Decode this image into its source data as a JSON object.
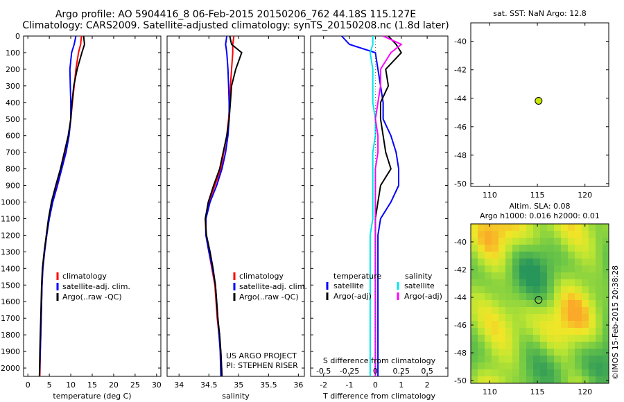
{
  "header": {
    "title_line1": "Argo profile: AO 5904416_8 06-Feb-2015 20150206_762 44.18S 115.127E",
    "title_line2": "Climatology: CARS2009. Satellite-adjusted climatology: synTS_20150208.nc (1.8d later)"
  },
  "colors": {
    "climatology": "#ff0000",
    "satellite": "#0000ff",
    "argo": "#000000",
    "sat_salinity": "#00e5ee",
    "argo_salinity_adj": "#ff00ff",
    "marker": "#c8e600"
  },
  "chart_data": [
    {
      "type": "line",
      "id": "temperature",
      "xlabel": "temperature (deg C)",
      "xlim": [
        -1,
        31
      ],
      "xticks": [
        0,
        5,
        10,
        15,
        20,
        25,
        30
      ],
      "ylim": [
        2050,
        0
      ],
      "yticks": [
        0,
        100,
        200,
        300,
        400,
        500,
        600,
        700,
        800,
        900,
        1000,
        1100,
        1200,
        1300,
        1400,
        1500,
        1600,
        1700,
        1800,
        1900,
        2000
      ],
      "legend": [
        "climatology",
        "satellite-adj. clim.",
        "Argo(..raw -QC)"
      ],
      "series": [
        {
          "name": "climatology",
          "x": [
            12.5,
            12.3,
            11.8,
            11.2,
            10.8,
            10.4,
            10.0,
            9.5,
            8.6,
            7.7,
            6.6,
            5.6,
            4.9,
            4.4,
            3.9,
            3.5,
            3.3,
            3.2,
            3.1,
            3.0,
            2.9,
            2.8
          ],
          "y": [
            0,
            50,
            100,
            200,
            300,
            400,
            500,
            600,
            700,
            800,
            900,
            1000,
            1100,
            1200,
            1300,
            1400,
            1500,
            1600,
            1700,
            1800,
            1900,
            2050
          ]
        },
        {
          "name": "satellite-adj. clim.",
          "x": [
            11.2,
            10.8,
            10.2,
            9.8,
            9.9,
            10.0,
            10.0,
            9.6,
            8.9,
            7.9,
            6.9,
            5.8,
            5.0,
            4.4,
            3.9,
            3.5,
            3.3,
            3.2,
            3.1,
            3.0,
            2.9,
            2.7
          ],
          "y": [
            0,
            50,
            100,
            200,
            300,
            400,
            500,
            600,
            700,
            800,
            900,
            1000,
            1100,
            1200,
            1300,
            1400,
            1500,
            1600,
            1700,
            1800,
            1900,
            2050
          ]
        },
        {
          "name": "Argo(..raw -QC)",
          "x": [
            13.0,
            13.2,
            12.6,
            11.5,
            10.7,
            10.3,
            10.0,
            9.4,
            8.5,
            7.6,
            6.5,
            5.5,
            4.8,
            4.3,
            3.8,
            3.4,
            3.2,
            3.1,
            3.0,
            2.9,
            2.8,
            2.7
          ],
          "y": [
            0,
            50,
            100,
            200,
            300,
            400,
            500,
            600,
            700,
            800,
            900,
            1000,
            1100,
            1200,
            1300,
            1400,
            1500,
            1600,
            1700,
            1800,
            1900,
            2050
          ]
        }
      ]
    },
    {
      "type": "line",
      "id": "salinity",
      "xlabel": "salinity",
      "xlim": [
        33.8,
        36.1
      ],
      "xticks": [
        34,
        34.5,
        35,
        35.5,
        36
      ],
      "ticklabels": [
        "34",
        "34.5",
        "35",
        "35.5",
        "36"
      ],
      "ylim": [
        2050,
        0
      ],
      "legend": [
        "climatology",
        "satellite-adj. clim.",
        "Argo(..raw -QC)"
      ],
      "annotation": [
        "US ARGO PROJECT",
        "PI: STEPHEN RISER"
      ],
      "series": [
        {
          "name": "climatology",
          "x": [
            34.92,
            34.9,
            34.9,
            34.88,
            34.86,
            34.85,
            34.83,
            34.8,
            34.75,
            34.7,
            34.6,
            34.5,
            34.44,
            34.45,
            34.5,
            34.55,
            34.6,
            34.62,
            34.64,
            34.67,
            34.7,
            34.72
          ],
          "y": [
            0,
            50,
            100,
            200,
            300,
            400,
            500,
            600,
            700,
            800,
            900,
            1000,
            1100,
            1200,
            1300,
            1400,
            1500,
            1600,
            1700,
            1800,
            1900,
            2050
          ]
        },
        {
          "name": "satellite-adj. clim.",
          "x": [
            34.8,
            34.78,
            34.8,
            34.82,
            34.83,
            34.84,
            34.84,
            34.82,
            34.78,
            34.72,
            34.63,
            34.52,
            34.45,
            34.45,
            34.5,
            34.56,
            34.61,
            34.63,
            34.65,
            34.67,
            34.69,
            34.7
          ],
          "y": [
            0,
            50,
            100,
            200,
            300,
            400,
            500,
            600,
            700,
            800,
            900,
            1000,
            1100,
            1200,
            1300,
            1400,
            1500,
            1600,
            1700,
            1800,
            1900,
            2050
          ]
        },
        {
          "name": "Argo(..raw -QC)",
          "x": [
            34.85,
            34.88,
            35.05,
            34.95,
            34.88,
            34.86,
            34.84,
            34.8,
            34.74,
            34.68,
            34.58,
            34.49,
            34.44,
            34.46,
            34.52,
            34.57,
            34.61,
            34.63,
            34.65,
            34.68,
            34.7,
            34.72
          ],
          "y": [
            0,
            50,
            100,
            200,
            300,
            400,
            500,
            600,
            700,
            800,
            900,
            1000,
            1100,
            1200,
            1300,
            1400,
            1500,
            1600,
            1700,
            1800,
            1900,
            2050
          ]
        }
      ]
    },
    {
      "type": "line",
      "id": "difference",
      "xlabel": "T difference from climatology",
      "xlabel_top": "S difference from climatology",
      "xlim": [
        -2.5,
        2.8
      ],
      "xticks": [
        -2,
        -1,
        0,
        1,
        2
      ],
      "top_ticks": [
        "-0.5",
        "-0.25",
        "0",
        "0.25",
        "0.5"
      ],
      "legend_headers": [
        "temperature",
        "salinity"
      ],
      "legend": [
        "satellite",
        "Argo(-adj)",
        "satellite",
        "Argo(-adj)"
      ],
      "series": [
        {
          "name": "satellite",
          "x": [
            -1.3,
            -1.0,
            0.0,
            0.1,
            0.2,
            0.3,
            0.3,
            0.6,
            0.8,
            0.9,
            0.9,
            0.6,
            0.2,
            0.1,
            0.1,
            0.1,
            0.1,
            0.1,
            0.1,
            0.1,
            0.1,
            0.1
          ],
          "y": [
            0,
            50,
            100,
            200,
            300,
            400,
            500,
            600,
            700,
            800,
            900,
            1000,
            1100,
            1200,
            1300,
            1400,
            1500,
            1600,
            1700,
            1800,
            1900,
            2050
          ]
        },
        {
          "name": "Argo(-adj)",
          "x": [
            0.5,
            0.8,
            1.0,
            0.4,
            0.5,
            0.2,
            0.2,
            0.3,
            0.4,
            0.6,
            0.2,
            0.1,
            0.0,
            0.0,
            0.0,
            0.0,
            0.0,
            0.0,
            0.0,
            0.0,
            0.0,
            0.0
          ],
          "y": [
            0,
            50,
            100,
            200,
            300,
            400,
            500,
            600,
            700,
            800,
            900,
            1000,
            1100,
            1200,
            1300,
            1400,
            1500,
            1600,
            1700,
            1800,
            1900,
            2050
          ]
        },
        {
          "name": "satellite salinity",
          "x": [
            -0.1,
            -0.1,
            -0.2,
            -0.1,
            -0.1,
            -0.1,
            0.0,
            0.0,
            -0.1,
            -0.1,
            -0.1,
            -0.1,
            -0.1,
            -0.2,
            -0.2,
            -0.2,
            -0.2,
            -0.2,
            -0.2,
            -0.2,
            -0.2,
            -0.2
          ],
          "y": [
            0,
            50,
            100,
            200,
            300,
            400,
            500,
            600,
            700,
            800,
            900,
            1000,
            1100,
            1200,
            1300,
            1400,
            1500,
            1600,
            1700,
            1800,
            1900,
            2050
          ]
        },
        {
          "name": "Argo salinity adj",
          "x": [
            0.3,
            1.0,
            0.6,
            0.2,
            0.2,
            0.1,
            0.0,
            0.1,
            0.1,
            0.0,
            0.0,
            0.0,
            0.0,
            0.0,
            0.0,
            0.0,
            0.0,
            0.0,
            0.0,
            0.0,
            0.0,
            0.0
          ],
          "y": [
            0,
            50,
            100,
            200,
            300,
            400,
            500,
            600,
            700,
            800,
            900,
            1000,
            1100,
            1200,
            1300,
            1400,
            1500,
            1600,
            1700,
            1800,
            1900,
            2050
          ]
        }
      ]
    },
    {
      "type": "scatter",
      "id": "sst_map",
      "title": "sat. SST: NaN Argo: 12.8",
      "xlim": [
        108,
        122.5
      ],
      "ylim": [
        -50.2,
        -38.7
      ],
      "xticks": [
        110,
        115,
        120
      ],
      "yticks": [
        -40,
        -42,
        -44,
        -46,
        -48,
        -50
      ],
      "point": {
        "x": 115.127,
        "y": -44.18
      }
    },
    {
      "type": "heatmap",
      "id": "sla_map",
      "title_line1": "Altim. SLA: 0.08",
      "title_line2": "Argo h1000: 0.016 h2000: 0.01",
      "xlim": [
        108,
        122.5
      ],
      "ylim": [
        -50.2,
        -38.7
      ],
      "xticks": [
        110,
        115,
        120
      ],
      "yticks": [
        -40,
        -42,
        -44,
        -46,
        -48,
        -50
      ],
      "point": {
        "x": 115.127,
        "y": -44.18
      }
    }
  ],
  "credit": "©IMOS 15-Feb-2015 20:38:28"
}
